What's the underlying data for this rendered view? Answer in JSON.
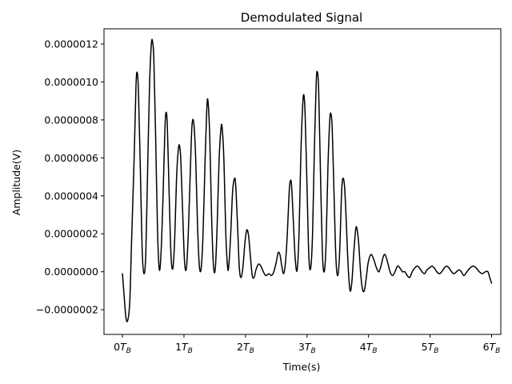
{
  "chart_data": {
    "type": "line",
    "title": "Demodulated Signal",
    "xlabel": "Time(s)",
    "ylabel": "Amplitude(V)",
    "xlim": [
      -0.3,
      6.15
    ],
    "ylim": [
      -3.3e-07,
      1.28e-06
    ],
    "x_ticks": [
      {
        "value": 0,
        "label": "0",
        "sub": "B"
      },
      {
        "value": 1,
        "label": "1",
        "sub": "B"
      },
      {
        "value": 2,
        "label": "2",
        "sub": "B"
      },
      {
        "value": 3,
        "label": "3",
        "sub": "B"
      },
      {
        "value": 4,
        "label": "4",
        "sub": "B"
      },
      {
        "value": 5,
        "label": "5",
        "sub": "B"
      },
      {
        "value": 6,
        "label": "6",
        "sub": "B"
      }
    ],
    "y_ticks": [
      {
        "value": -2e-07,
        "label": "−0.0000002"
      },
      {
        "value": 0.0,
        "label": "0.0000000"
      },
      {
        "value": 2e-07,
        "label": "0.0000002"
      },
      {
        "value": 4e-07,
        "label": "0.0000004"
      },
      {
        "value": 6e-07,
        "label": "0.0000006"
      },
      {
        "value": 8e-07,
        "label": "0.0000008"
      },
      {
        "value": 1e-06,
        "label": "0.0000010"
      },
      {
        "value": 1.2e-06,
        "label": "0.0000012"
      }
    ],
    "grid": false,
    "series": [
      {
        "color": "#000000",
        "points": [
          [
            0.0,
            -1e-08
          ],
          [
            0.03,
            -1.4e-07
          ],
          [
            0.06,
            -2.5e-07
          ],
          [
            0.09,
            -2.5e-07
          ],
          [
            0.12,
            -1.5e-07
          ],
          [
            0.15,
            1.8e-07
          ],
          [
            0.19,
            6e-07
          ],
          [
            0.22,
            9.8e-07
          ],
          [
            0.24,
            1.05e-06
          ],
          [
            0.26,
            9.5e-07
          ],
          [
            0.29,
            5.5e-07
          ],
          [
            0.32,
            1.2e-07
          ],
          [
            0.35,
            -1e-08
          ],
          [
            0.38,
            1e-07
          ],
          [
            0.41,
            5.5e-07
          ],
          [
            0.44,
            9.8e-07
          ],
          [
            0.47,
            1.2e-06
          ],
          [
            0.49,
            1.21e-06
          ],
          [
            0.51,
            1.12e-06
          ],
          [
            0.54,
            7e-07
          ],
          [
            0.57,
            2.2e-07
          ],
          [
            0.6,
            1e-08
          ],
          [
            0.63,
            1.2e-07
          ],
          [
            0.66,
            4e-07
          ],
          [
            0.69,
            7.5e-07
          ],
          [
            0.71,
            8.4e-07
          ],
          [
            0.73,
            7.6e-07
          ],
          [
            0.76,
            4e-07
          ],
          [
            0.79,
            8e-08
          ],
          [
            0.82,
            2e-08
          ],
          [
            0.85,
            1.8e-07
          ],
          [
            0.88,
            5e-07
          ],
          [
            0.91,
            6.5e-07
          ],
          [
            0.93,
            6.6e-07
          ],
          [
            0.95,
            5.8e-07
          ],
          [
            0.98,
            3e-07
          ],
          [
            1.01,
            5e-08
          ],
          [
            1.04,
            2e-08
          ],
          [
            1.07,
            2e-07
          ],
          [
            1.1,
            5e-07
          ],
          [
            1.13,
            7.7e-07
          ],
          [
            1.16,
            7.8e-07
          ],
          [
            1.19,
            6e-07
          ],
          [
            1.22,
            2.5e-07
          ],
          [
            1.25,
            3e-08
          ],
          [
            1.28,
            2e-08
          ],
          [
            1.31,
            2e-07
          ],
          [
            1.34,
            5.5e-07
          ],
          [
            1.37,
            8.5e-07
          ],
          [
            1.39,
            9e-07
          ],
          [
            1.42,
            7e-07
          ],
          [
            1.45,
            2.8e-07
          ],
          [
            1.48,
            3e-08
          ],
          [
            1.51,
            2e-08
          ],
          [
            1.54,
            2.5e-07
          ],
          [
            1.57,
            5.8e-07
          ],
          [
            1.6,
            7.5e-07
          ],
          [
            1.62,
            7.6e-07
          ],
          [
            1.65,
            5.8e-07
          ],
          [
            1.68,
            2e-07
          ],
          [
            1.71,
            2e-08
          ],
          [
            1.73,
            4e-08
          ],
          [
            1.76,
            2e-07
          ],
          [
            1.79,
            4.2e-07
          ],
          [
            1.82,
            4.9e-07
          ],
          [
            1.84,
            4.6e-07
          ],
          [
            1.87,
            2.5e-07
          ],
          [
            1.9,
            2e-08
          ],
          [
            1.93,
            -3e-08
          ],
          [
            1.96,
            3e-08
          ],
          [
            1.99,
            1.5e-07
          ],
          [
            2.02,
            2.2e-07
          ],
          [
            2.05,
            1.9e-07
          ],
          [
            2.08,
            8e-08
          ],
          [
            2.11,
            -2e-08
          ],
          [
            2.14,
            -3e-08
          ],
          [
            2.17,
            1e-08
          ],
          [
            2.21,
            4e-08
          ],
          [
            2.25,
            3e-08
          ],
          [
            2.29,
            0.0
          ],
          [
            2.33,
            -2e-08
          ],
          [
            2.38,
            -1e-08
          ],
          [
            2.42,
            -2e-08
          ],
          [
            2.46,
            0.0
          ],
          [
            2.5,
            5e-08
          ],
          [
            2.53,
            1e-07
          ],
          [
            2.56,
            9e-08
          ],
          [
            2.59,
            3e-08
          ],
          [
            2.62,
            -1e-08
          ],
          [
            2.65,
            5e-08
          ],
          [
            2.68,
            2e-07
          ],
          [
            2.71,
            4.2e-07
          ],
          [
            2.73,
            4.8e-07
          ],
          [
            2.75,
            4.5e-07
          ],
          [
            2.78,
            2.5e-07
          ],
          [
            2.81,
            6e-08
          ],
          [
            2.84,
            1e-08
          ],
          [
            2.87,
            2e-07
          ],
          [
            2.9,
            6.2e-07
          ],
          [
            2.93,
            8.8e-07
          ],
          [
            2.95,
            9.3e-07
          ],
          [
            2.97,
            8.2e-07
          ],
          [
            3.0,
            4.5e-07
          ],
          [
            3.03,
            8e-08
          ],
          [
            3.06,
            2e-08
          ],
          [
            3.09,
            2e-07
          ],
          [
            3.12,
            6.5e-07
          ],
          [
            3.15,
            1e-06
          ],
          [
            3.17,
            1.05e-06
          ],
          [
            3.19,
            9.5e-07
          ],
          [
            3.22,
            5e-07
          ],
          [
            3.25,
            1e-07
          ],
          [
            3.28,
            0.0
          ],
          [
            3.31,
            1.5e-07
          ],
          [
            3.34,
            5.5e-07
          ],
          [
            3.37,
            8e-07
          ],
          [
            3.39,
            8.3e-07
          ],
          [
            3.41,
            7.5e-07
          ],
          [
            3.44,
            4e-07
          ],
          [
            3.47,
            7e-08
          ],
          [
            3.5,
            -2e-08
          ],
          [
            3.53,
            1e-07
          ],
          [
            3.56,
            4e-07
          ],
          [
            3.58,
            4.9e-07
          ],
          [
            3.61,
            4.5e-07
          ],
          [
            3.64,
            2.5e-07
          ],
          [
            3.67,
            2e-08
          ],
          [
            3.7,
            -1e-07
          ],
          [
            3.73,
            -5e-08
          ],
          [
            3.76,
            1e-07
          ],
          [
            3.79,
            2.2e-07
          ],
          [
            3.81,
            2.3e-07
          ],
          [
            3.84,
            1.5e-07
          ],
          [
            3.87,
            0.0
          ],
          [
            3.9,
            -9e-08
          ],
          [
            3.93,
            -1e-07
          ],
          [
            3.96,
            -4e-08
          ],
          [
            3.99,
            4e-08
          ],
          [
            4.02,
            8e-08
          ],
          [
            4.05,
            9e-08
          ],
          [
            4.09,
            6e-08
          ],
          [
            4.13,
            2e-08
          ],
          [
            4.17,
            0.0
          ],
          [
            4.21,
            4e-08
          ],
          [
            4.24,
            8e-08
          ],
          [
            4.27,
            9e-08
          ],
          [
            4.31,
            5e-08
          ],
          [
            4.35,
            0.0
          ],
          [
            4.39,
            -2e-08
          ],
          [
            4.43,
            0.0
          ],
          [
            4.47,
            3e-08
          ],
          [
            4.51,
            2e-08
          ],
          [
            4.55,
            0.0
          ],
          [
            4.59,
            0.0
          ],
          [
            4.63,
            -2e-08
          ],
          [
            4.67,
            -3e-08
          ],
          [
            4.71,
            0.0
          ],
          [
            4.75,
            2e-08
          ],
          [
            4.79,
            3e-08
          ],
          [
            4.83,
            2e-08
          ],
          [
            4.87,
            0.0
          ],
          [
            4.91,
            -1e-08
          ],
          [
            4.95,
            1e-08
          ],
          [
            4.99,
            2e-08
          ],
          [
            5.03,
            3e-08
          ],
          [
            5.07,
            2e-08
          ],
          [
            5.11,
            0.0
          ],
          [
            5.15,
            -1e-08
          ],
          [
            5.19,
            0.0
          ],
          [
            5.23,
            2e-08
          ],
          [
            5.27,
            3e-08
          ],
          [
            5.31,
            2e-08
          ],
          [
            5.35,
            0.0
          ],
          [
            5.39,
            -1e-08
          ],
          [
            5.43,
            0.0
          ],
          [
            5.47,
            1e-08
          ],
          [
            5.51,
            0.0
          ],
          [
            5.55,
            -2e-08
          ],
          [
            5.6,
            0.0
          ],
          [
            5.65,
            2e-08
          ],
          [
            5.7,
            3e-08
          ],
          [
            5.75,
            2e-08
          ],
          [
            5.8,
            0.0
          ],
          [
            5.85,
            -1e-08
          ],
          [
            5.9,
            0.0
          ],
          [
            5.94,
            0.0
          ],
          [
            5.97,
            -3e-08
          ],
          [
            6.0,
            -6e-08
          ]
        ]
      }
    ]
  }
}
